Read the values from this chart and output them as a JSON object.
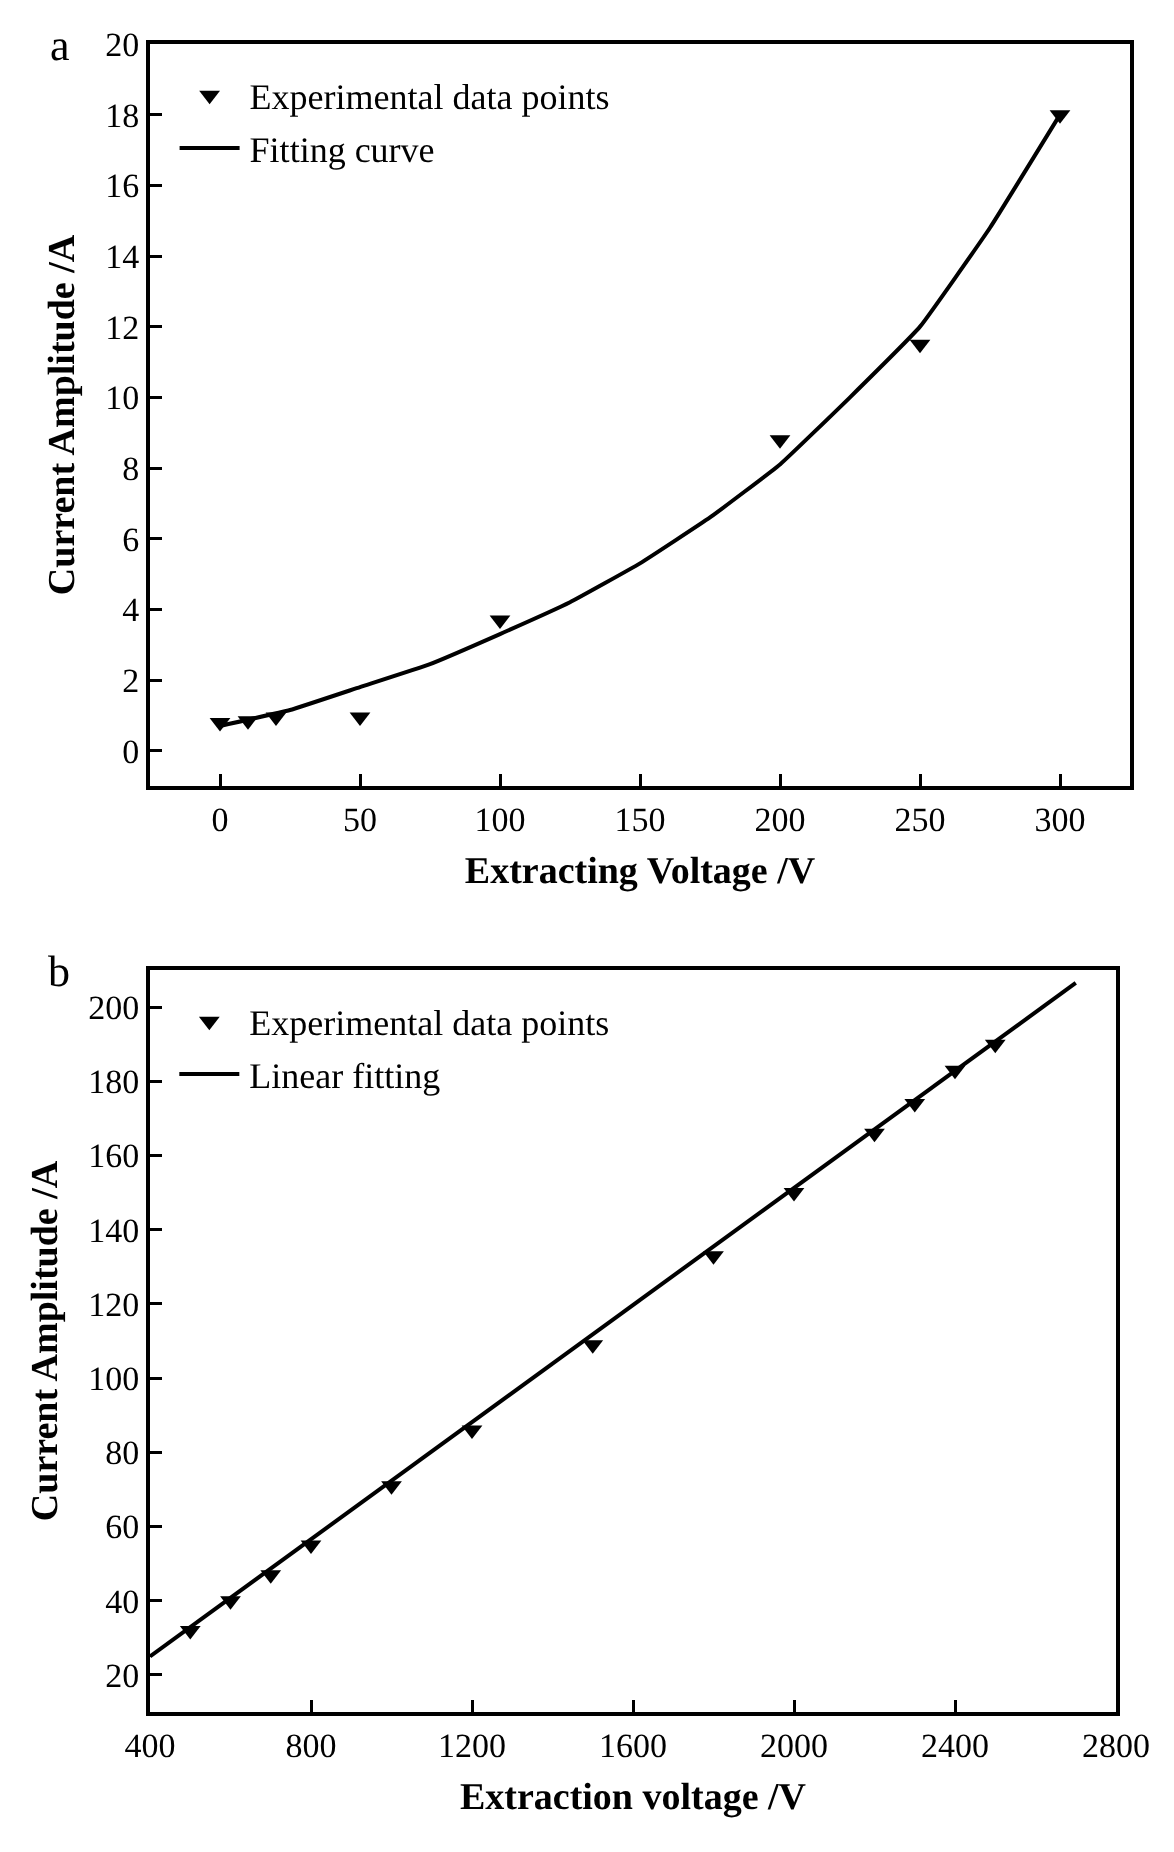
{
  "chart_data": [
    {
      "type": "scatter",
      "xlabel": "Extracting Voltage /V",
      "ylabel": "Current Amplitude /A",
      "annotations": [
        "a"
      ],
      "xlim": [
        -25,
        325
      ],
      "xticks": [
        0,
        50,
        100,
        150,
        200,
        250,
        300
      ],
      "ylim": [
        -1,
        20
      ],
      "yticks": [
        0,
        2,
        4,
        6,
        8,
        10,
        12,
        14,
        16,
        18,
        20
      ],
      "grid": false,
      "legend": "top left",
      "series": [
        {
          "name": "Experimental data points",
          "type": "scatter",
          "marker": "triangle",
          "color": "#000000",
          "x": [
            0,
            10,
            20,
            50,
            100,
            200,
            250,
            300
          ],
          "values": [
            0.8,
            0.85,
            0.95,
            0.95,
            3.7,
            8.8,
            11.5,
            18
          ]
        },
        {
          "name": "Fitting curve",
          "type": "line",
          "marker": "none",
          "line_style": "solid",
          "color": "#000000",
          "x": [
            0,
            25,
            50,
            75,
            100,
            125,
            150,
            175,
            200,
            225,
            250,
            275,
            300
          ],
          "values": [
            0.7,
            1.15,
            1.8,
            2.45,
            3.3,
            4.2,
            5.3,
            6.6,
            8.1,
            10.0,
            12.0,
            14.8,
            18
          ]
        }
      ]
    },
    {
      "type": "scatter",
      "xlabel": "Extraction voltage /V",
      "ylabel": "Current Amplitude /A",
      "annotations": [
        "b"
      ],
      "xlim": [
        400,
        2800
      ],
      "xticks": [
        400,
        800,
        1200,
        1600,
        2000,
        2400,
        2800
      ],
      "ylim": [
        10,
        210
      ],
      "yticks": [
        20,
        40,
        60,
        80,
        100,
        120,
        140,
        160,
        180,
        200
      ],
      "grid": false,
      "legend": "top left",
      "series": [
        {
          "name": "Experimental data points",
          "type": "scatter",
          "marker": "triangle",
          "color": "#000000",
          "x": [
            500,
            600,
            700,
            800,
            1000,
            1200,
            1500,
            1800,
            2000,
            2200,
            2300,
            2400,
            2500
          ],
          "values": [
            32,
            40,
            47,
            55,
            71,
            86,
            109,
            133,
            150,
            166,
            174,
            183,
            190
          ]
        },
        {
          "name": "Linear fitting",
          "type": "line",
          "marker": "none",
          "line_style": "solid",
          "color": "#000000",
          "x": [
            400,
            2700
          ],
          "values": [
            25,
            206.5
          ]
        }
      ]
    }
  ]
}
